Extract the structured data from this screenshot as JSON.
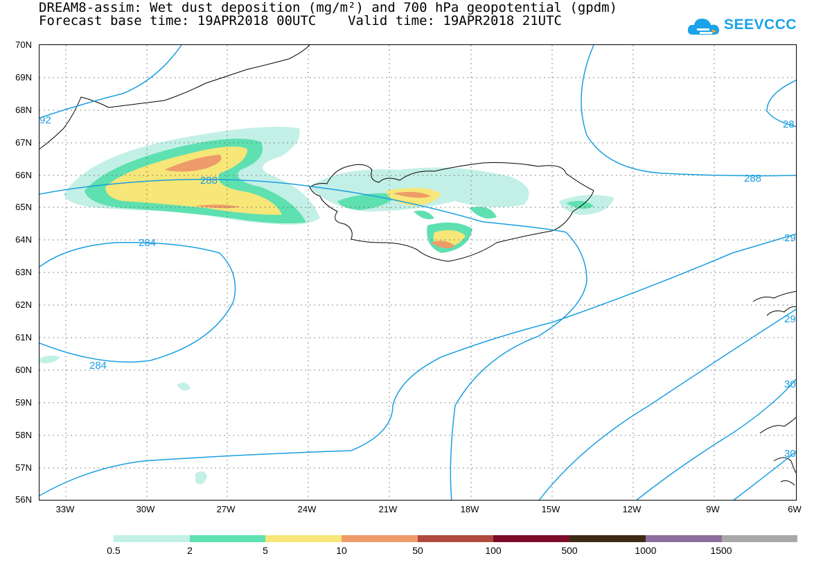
{
  "header": {
    "title_line1": "DREAM8-assim: Wet dust deposition (mg/m²) and 700 hPa geopotential (gpdm)",
    "title_line2": "Forecast base time: 19APR2018 00UTC    Valid time: 19APR2018 21UTC",
    "logo_text": "SEEVCCC",
    "logo_icon": "cloud-logo-icon",
    "logo_color": "#1aa3e8"
  },
  "map": {
    "lat_labels": [
      "70N",
      "69N",
      "68N",
      "67N",
      "66N",
      "65N",
      "64N",
      "63N",
      "62N",
      "61N",
      "60N",
      "59N",
      "58N",
      "57N",
      "56N"
    ],
    "lon_labels": [
      "33W",
      "30W",
      "27W",
      "24W",
      "21W",
      "18W",
      "15W",
      "12W",
      "9W",
      "6W"
    ],
    "contour_color": "#1a9ee0",
    "contour_labels": [
      "92",
      "284",
      "284",
      "288",
      "288",
      "28",
      "29",
      "29",
      "30",
      "30"
    ]
  },
  "legend": {
    "colors": [
      "#c3f0e6",
      "#5ee0b0",
      "#f7e678",
      "#ee9b6a",
      "#b04a3e",
      "#7d0b2a",
      "#3d2a14",
      "#8d6e9e",
      "#a8a8a8"
    ],
    "labels": [
      "0.5",
      "2",
      "5",
      "10",
      "50",
      "100",
      "500",
      "1000",
      "1500"
    ]
  }
}
